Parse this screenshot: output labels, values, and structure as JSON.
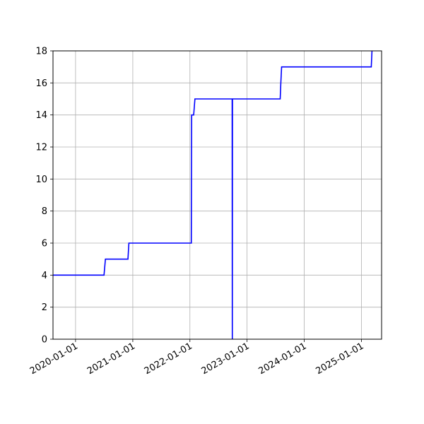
{
  "chart_data": {
    "type": "line",
    "title": "",
    "xlabel": "",
    "ylabel": "",
    "x_axis_type": "date",
    "xlim": [
      "2019-08-10",
      "2025-05-10"
    ],
    "ylim": [
      0,
      18
    ],
    "x_ticks": [
      "2020-01-01",
      "2021-01-01",
      "2022-01-01",
      "2023-01-01",
      "2024-01-01",
      "2025-01-01"
    ],
    "y_ticks": [
      "0",
      "2",
      "4",
      "6",
      "8",
      "10",
      "12",
      "14",
      "16",
      "18"
    ],
    "grid": true,
    "line_color": "#0000ff",
    "grid_color": "#b0b0b0",
    "series": [
      {
        "points": [
          [
            "2019-08-10",
            4
          ],
          [
            "2020-07-01",
            4
          ],
          [
            "2020-07-10",
            5
          ],
          [
            "2020-12-01",
            5
          ],
          [
            "2020-12-07",
            6
          ],
          [
            "2022-01-10",
            6
          ],
          [
            "2022-01-12",
            14
          ],
          [
            "2022-01-25",
            14
          ],
          [
            "2022-02-02",
            15
          ],
          [
            "2022-09-28",
            15
          ],
          [
            "2022-09-29",
            0
          ],
          [
            "2022-09-30",
            15
          ],
          [
            "2023-08-01",
            15
          ],
          [
            "2023-08-05",
            16
          ],
          [
            "2023-08-10",
            17
          ],
          [
            "2025-03-05",
            17
          ],
          [
            "2025-03-10",
            18.1
          ]
        ]
      }
    ]
  }
}
